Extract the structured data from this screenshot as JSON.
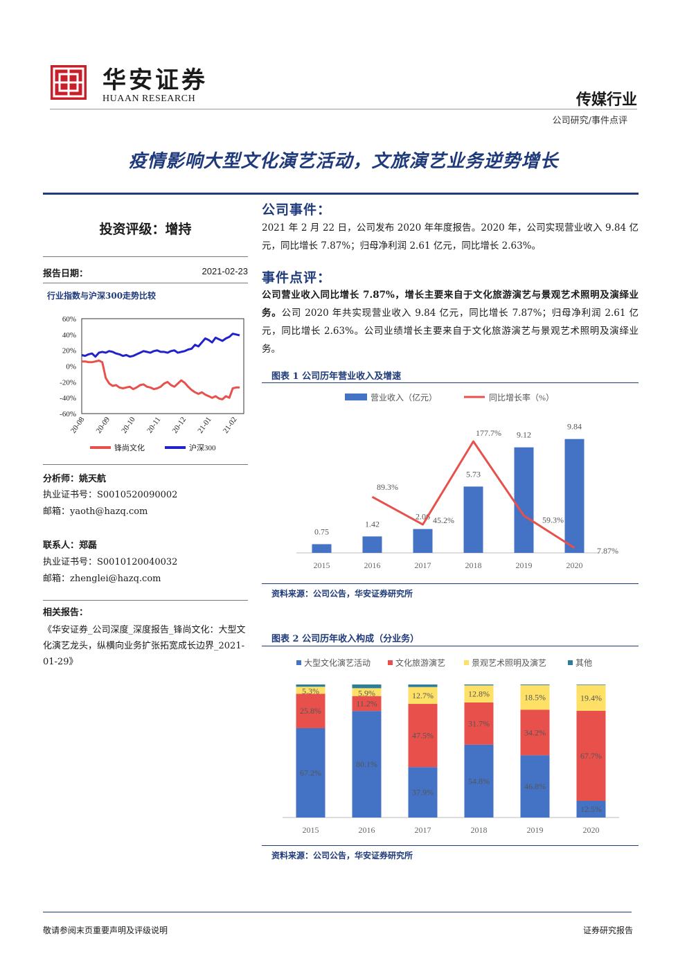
{
  "header": {
    "logo_cn": "华安证券",
    "logo_en": "HUAAN RESEARCH",
    "industry": "传媒行业",
    "category": "公司研究/事件点评"
  },
  "title": "疫情影响大型文化演艺活动，文旅演艺业务逆势增长",
  "left": {
    "rating": "投资评级：增持",
    "date_label": "报告日期：",
    "date_value": "2021-02-23",
    "trend_title": "行业指数与沪深300走势比较",
    "analyst_title": "分析师：姚天航",
    "analyst_cert": "执业证书号：S0010520090002",
    "analyst_email": "邮箱：yaoth@hazq.com",
    "contact_title": "联系人：郑磊",
    "contact_cert": "执业证书号：S0010120040032",
    "contact_email": "邮箱：zhenglei@hazq.com",
    "related_title": "相关报告：",
    "related_text": "《华安证券_公司深度_深度报告_锋尚文化：大型文化演艺龙头，纵横向业务扩张拓宽成长边界_2021-01-29》"
  },
  "right": {
    "event_title": "公司事件：",
    "event_text": "2021 年 2 月 22 日，公司发布 2020 年年度报告。2020 年，公司实现营业收入 9.84 亿元，同比增长 7.87%；归母净利润 2.61 亿元，同比增长 2.63%。",
    "review_title": "事件点评：",
    "review_bold": "公司营业收入同比增长 7.87%，增长主要来自于文化旅游演艺与景观艺术照明及演绎业务。",
    "review_text": "公司 2020 年共实现营业收入 9.84 亿元，同比增长 7.87%；归母净利润 2.61 亿元，同比增长 2.63%。公司业绩增长主要来自于文化旅游演艺与景观艺术照明及演绎业务。",
    "fig1_title": "图表 1 公司历年营业收入及增速",
    "fig2_title": "图表 2 公司历年收入构成（分业务）",
    "source1": "资料来源：公司公告，华安证券研究所",
    "source2": "资料来源：公司公告，华安证券研究所"
  },
  "footer": {
    "left": "敬请参阅末页重要声明及评级说明",
    "right": "证券研究报告"
  },
  "colors": {
    "navy": "#1f3a7a",
    "blue": "#4472c4",
    "red": "#e8504c",
    "yellow": "#ffe066",
    "teal": "#2e7d9a"
  },
  "chart_data": [
    {
      "type": "line",
      "title": "行业指数与沪深300走势比较",
      "x_ticks": [
        "20-08",
        "20-09",
        "20-10",
        "20-11",
        "20-12",
        "21-01",
        "21-02"
      ],
      "y_ticks": [
        "60%",
        "40%",
        "20%",
        "0%",
        "-20%",
        "-40%",
        "-60%"
      ],
      "ylim": [
        -60,
        60
      ],
      "legend": "bottom",
      "series": [
        {
          "name": "锋尚文化",
          "color": "#e8504c",
          "values": [
            6,
            6,
            5,
            5,
            6,
            7,
            5,
            -15,
            -22,
            -25,
            -24,
            -27,
            -28,
            -27,
            -26,
            -29,
            -27,
            -24,
            -23,
            -26,
            -27,
            -29,
            -28,
            -26,
            -22,
            -20,
            -24,
            -26,
            -22,
            -18,
            -21,
            -26,
            -30,
            -33,
            -35,
            -33,
            -36,
            -38,
            -40,
            -38,
            -41,
            -42,
            -38,
            -40,
            -28,
            -27,
            -27
          ]
        },
        {
          "name": "沪深300",
          "color": "#2222cc",
          "values": [
            14,
            13,
            15,
            16,
            12,
            17,
            18,
            17,
            19,
            18,
            16,
            15,
            13,
            14,
            12,
            13,
            15,
            17,
            19,
            18,
            17,
            19,
            20,
            18,
            18,
            17,
            19,
            20,
            17,
            18,
            19,
            21,
            22,
            27,
            25,
            30,
            35,
            33,
            30,
            36,
            34,
            32,
            35,
            37,
            41,
            40,
            39
          ]
        }
      ]
    },
    {
      "type": "bar",
      "title": "图表 1 公司历年营业收入及增速",
      "categories": [
        "2015",
        "2016",
        "2017",
        "2018",
        "2019",
        "2020"
      ],
      "legend": "top",
      "series": [
        {
          "name": "营业收入（亿元）",
          "type": "bar",
          "color": "#4472c4",
          "values": [
            0.75,
            1.42,
            2.06,
            5.73,
            9.12,
            9.84
          ],
          "labels": [
            "0.75",
            "1.42",
            "2.06",
            "5.73",
            "9.12",
            "9.84"
          ]
        },
        {
          "name": "同比增长率（%）",
          "type": "line",
          "color": "#e8504c",
          "values": [
            null,
            89.3,
            45.2,
            177.7,
            59.3,
            7.87
          ],
          "labels": [
            "",
            "89.3%",
            "45.2%",
            "177.7%",
            "59.3%",
            "7.87%"
          ]
        }
      ]
    },
    {
      "type": "bar",
      "stacked": true,
      "title": "图表 2 公司历年收入构成（分业务）",
      "categories": [
        "2015",
        "2016",
        "2017",
        "2018",
        "2019",
        "2020"
      ],
      "legend": "top",
      "series": [
        {
          "name": "大型文化演艺活动",
          "color": "#4472c4",
          "values": [
            67.2,
            80.1,
            37.9,
            54.8,
            46.8,
            12.5
          ],
          "labels": [
            "67.2%",
            "80.1%",
            "37.9%",
            "54.8%",
            "46.8%",
            "12.5%"
          ]
        },
        {
          "name": "文化旅游演艺",
          "color": "#e8504c",
          "values": [
            25.8,
            11.2,
            47.5,
            31.7,
            34.2,
            67.7
          ],
          "labels": [
            "25.8%",
            "11.2%",
            "47.5%",
            "31.7%",
            "34.2%",
            "67.7%"
          ]
        },
        {
          "name": "景观艺术照明及演艺",
          "color": "#ffe066",
          "values": [
            5.3,
            5.9,
            12.7,
            12.8,
            18.5,
            19.4
          ],
          "labels": [
            "5.3%",
            "5.9%",
            "12.7%",
            "12.8%",
            "18.5%",
            "19.4%"
          ]
        },
        {
          "name": "其他",
          "color": "#2e7d9a",
          "values": [
            1.7,
            2.8,
            1.9,
            0.7,
            0.5,
            0.4
          ],
          "labels": [
            "",
            "",
            "",
            "",
            "",
            ""
          ]
        }
      ]
    }
  ]
}
